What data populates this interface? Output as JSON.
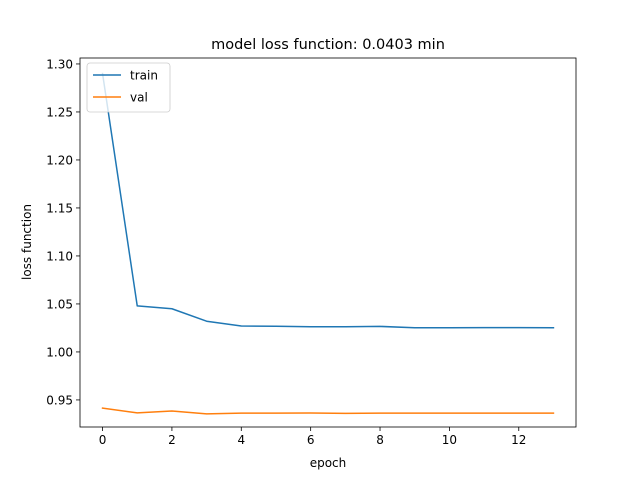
{
  "chart_data": {
    "type": "line",
    "title": "model loss function: 0.0403 min",
    "xlabel": "epoch",
    "ylabel": "loss function",
    "x": [
      0,
      1,
      2,
      3,
      4,
      5,
      6,
      7,
      8,
      9,
      10,
      11,
      12,
      13
    ],
    "series": [
      {
        "name": "train",
        "color": "#1f77b4",
        "values": [
          1.29,
          1.048,
          1.045,
          1.032,
          1.027,
          1.0268,
          1.0263,
          1.0263,
          1.0266,
          1.0252,
          1.0252,
          1.0253,
          1.0253,
          1.0252
        ]
      },
      {
        "name": "val",
        "color": "#ff7f0e",
        "values": [
          0.9415,
          0.9365,
          0.9385,
          0.9355,
          0.9362,
          0.9363,
          0.9364,
          0.936,
          0.9363,
          0.9363,
          0.9363,
          0.9363,
          0.9363,
          0.9362
        ]
      }
    ],
    "xlim": [
      -0.65,
      13.65
    ],
    "ylim": [
      0.9218,
      1.3062
    ],
    "xticks": [
      0,
      2,
      4,
      6,
      8,
      10,
      12
    ],
    "xtick_labels": [
      "0",
      "2",
      "4",
      "6",
      "8",
      "10",
      "12"
    ],
    "yticks": [
      0.95,
      1.0,
      1.05,
      1.1,
      1.15,
      1.2,
      1.25,
      1.3
    ],
    "ytick_labels": [
      "0.95",
      "1.00",
      "1.05",
      "1.10",
      "1.15",
      "1.20",
      "1.25",
      "1.30"
    ],
    "grid": false,
    "legend_position": "upper-left"
  }
}
